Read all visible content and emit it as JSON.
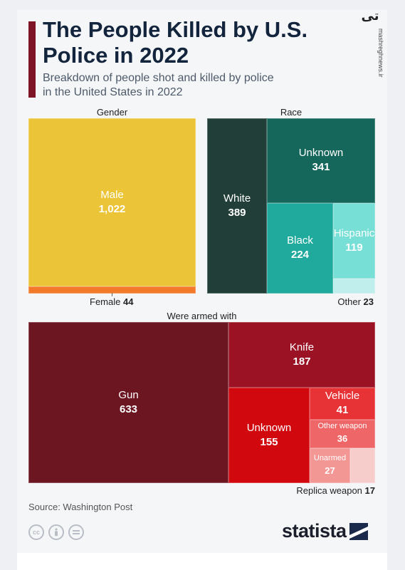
{
  "header": {
    "title": "The People Killed by U.S. Police in 2022",
    "subtitle": "Breakdown of people shot and killed by police in the United States in 2022"
  },
  "watermark": {
    "text": "تی",
    "url": "mashreghnews.ir"
  },
  "chart_data": [
    {
      "type": "treemap",
      "title": "Gender",
      "categories": [
        "Male",
        "Female"
      ],
      "values": [
        1022,
        44
      ],
      "colors": [
        "#ebc437",
        "#f3792b"
      ]
    },
    {
      "type": "treemap",
      "title": "Race",
      "categories": [
        "White",
        "Unknown",
        "Black",
        "Hispanic",
        "Other"
      ],
      "values": [
        389,
        341,
        224,
        119,
        23
      ],
      "colors": [
        "#213f38",
        "#15665b",
        "#20aa9d",
        "#78dfd7",
        "#bfeeed"
      ]
    },
    {
      "type": "treemap",
      "title": "Were armed with",
      "categories": [
        "Gun",
        "Knife",
        "Unknown",
        "Vehicle",
        "Other weapon",
        "Unarmed",
        "Replica weapon"
      ],
      "values": [
        633,
        187,
        155,
        41,
        36,
        27,
        17
      ],
      "colors": [
        "#6c1622",
        "#9a1223",
        "#d1090f",
        "#e73236",
        "#ee6667",
        "#f39795",
        "#f7cdcc"
      ]
    }
  ],
  "footer": {
    "source": "Source: Washington Post",
    "brand": "statista",
    "license_icons": [
      "cc-icon",
      "attribution-icon",
      "no-derivatives-icon"
    ]
  }
}
